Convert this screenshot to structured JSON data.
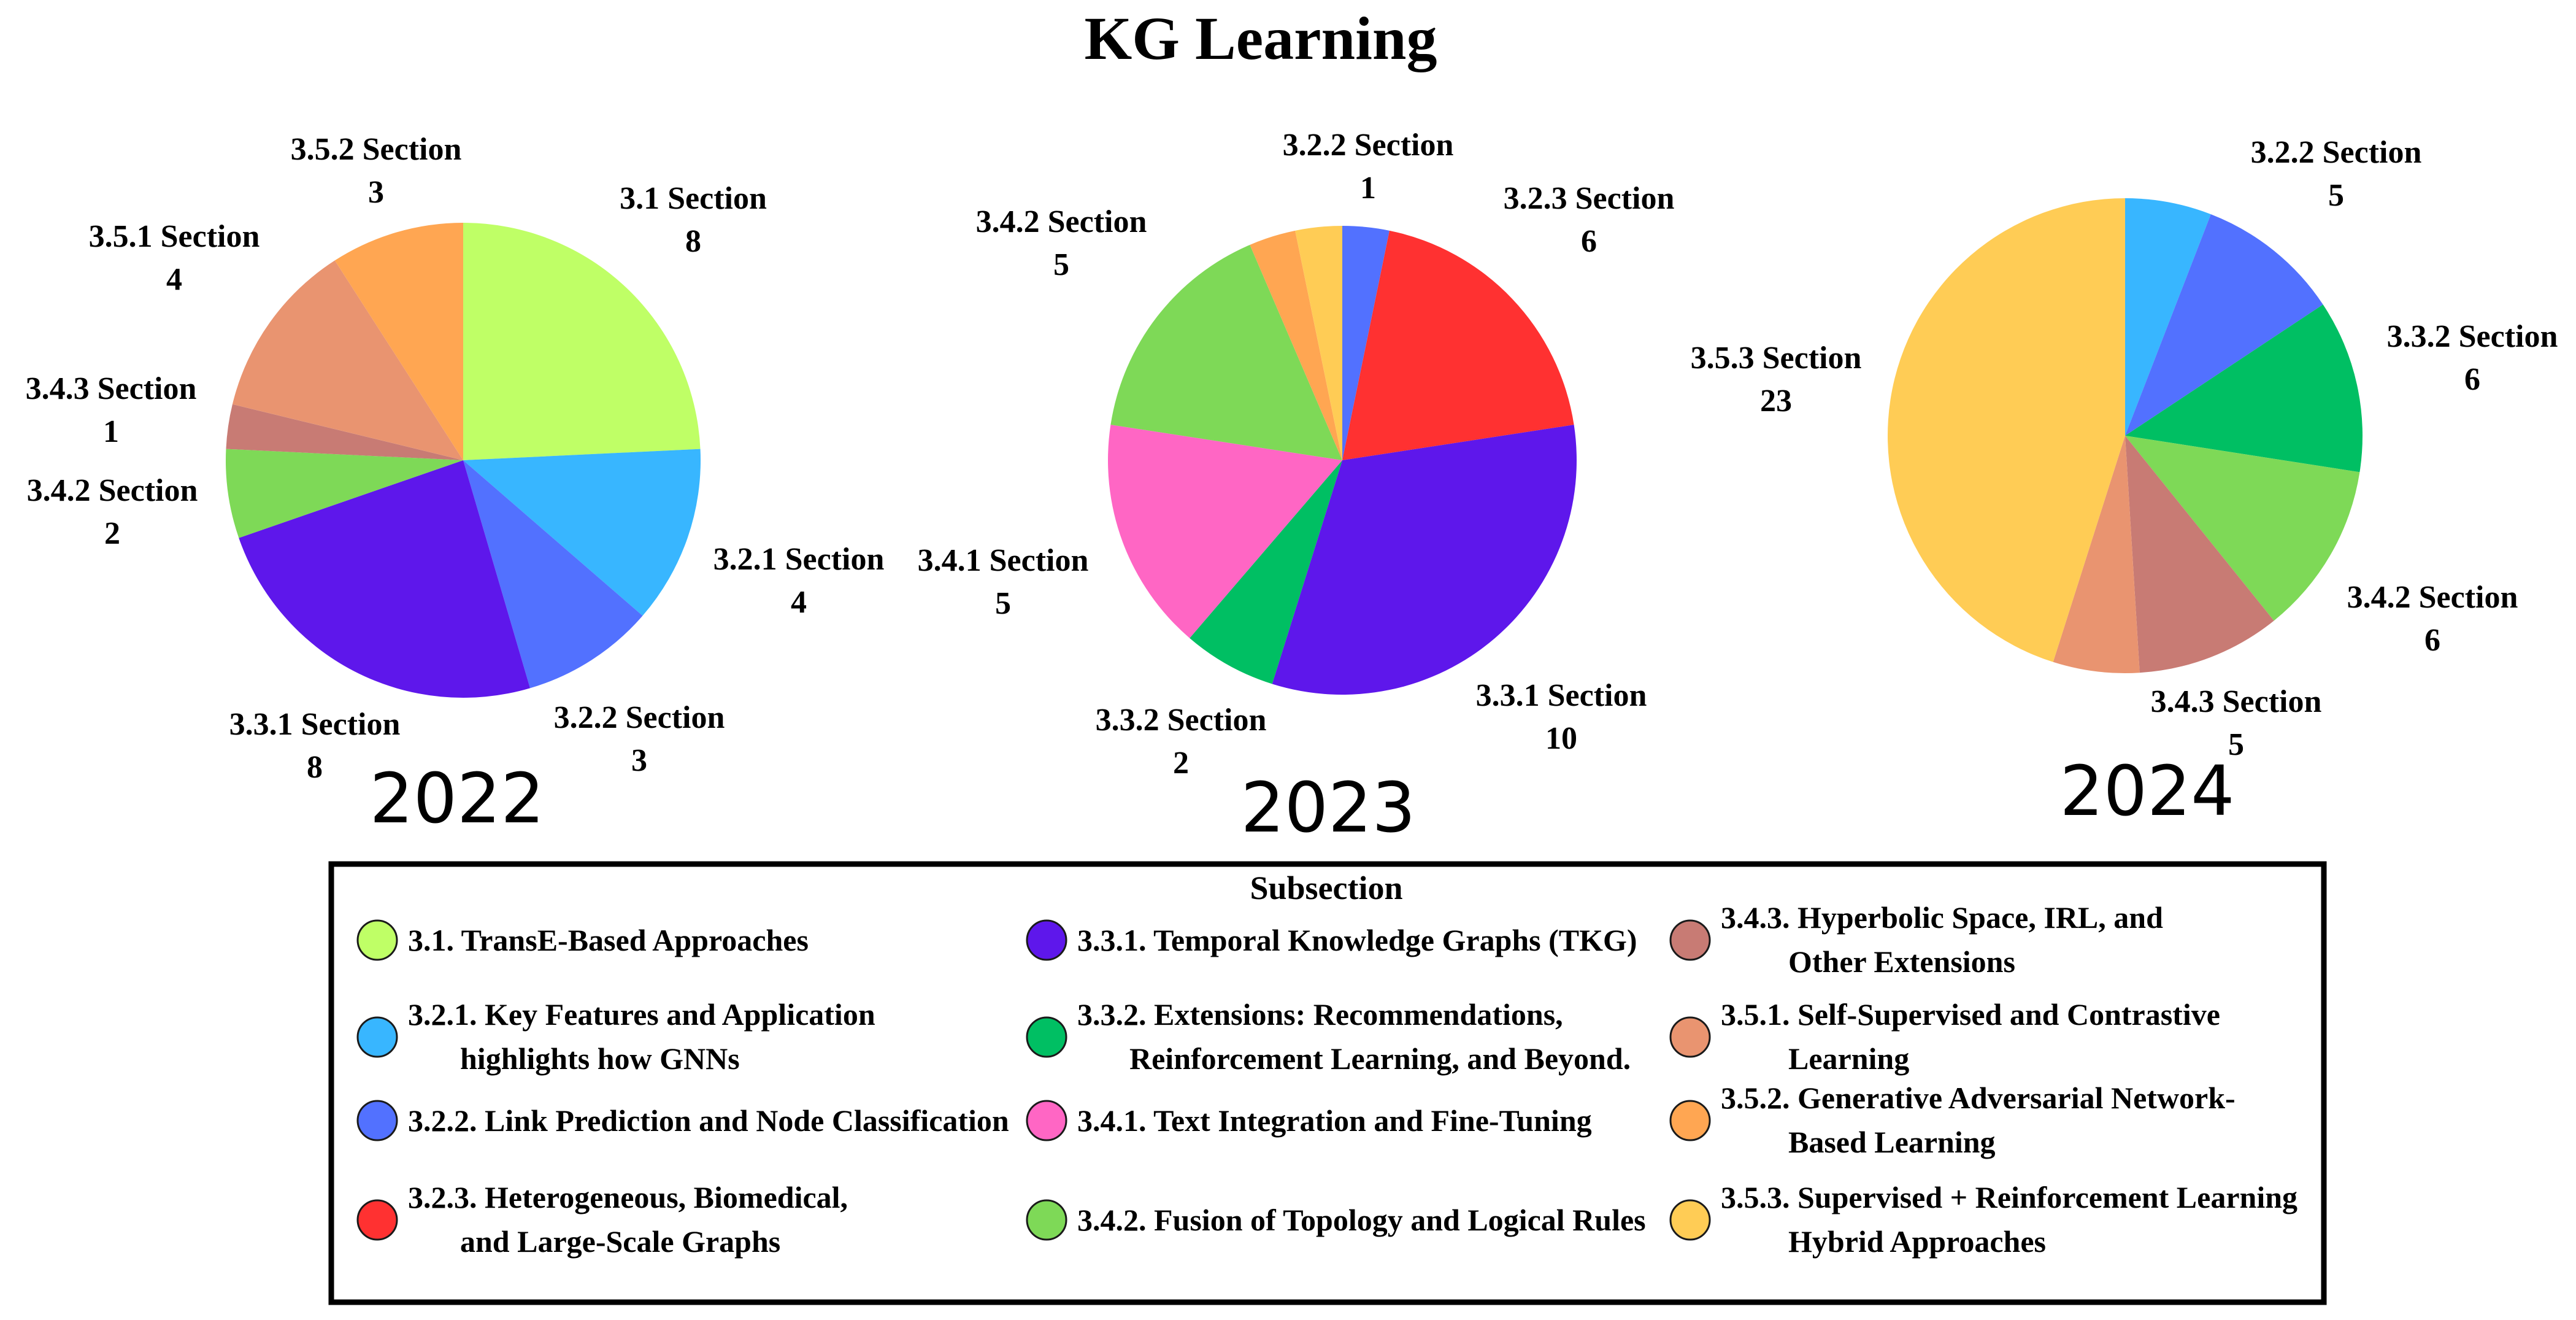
{
  "chart_data": {
    "type": "pie",
    "title": "KG Learning",
    "legend": {
      "title": "Subsection",
      "placement": "bottom",
      "entries": [
        {
          "key": "3.1",
          "lines": [
            "3.1. TransE-Based Approaches"
          ],
          "color": "#bfff66"
        },
        {
          "key": "3.2.1",
          "lines": [
            "3.2.1. Key Features and Application",
            "highlights how GNNs"
          ],
          "color": "#38b6ff"
        },
        {
          "key": "3.2.2",
          "lines": [
            "3.2.2. Link Prediction and Node Classification"
          ],
          "color": "#5271ff"
        },
        {
          "key": "3.2.3",
          "lines": [
            "3.2.3. Heterogeneous, Biomedical,",
            "and Large-Scale Graphs"
          ],
          "color": "#ff3131"
        },
        {
          "key": "3.3.1",
          "lines": [
            "3.3.1. Temporal Knowledge Graphs (TKG)"
          ],
          "color": "#5e17eb"
        },
        {
          "key": "3.3.2",
          "lines": [
            "3.3.2. Extensions: Recommendations,",
            "Reinforcement Learning, and Beyond."
          ],
          "color": "#00bf63"
        },
        {
          "key": "3.4.1",
          "lines": [
            "3.4.1. Text Integration and Fine-Tuning"
          ],
          "color": "#ff66c4"
        },
        {
          "key": "3.4.2",
          "lines": [
            "3.4.2. Fusion of Topology and Logical Rules"
          ],
          "color": "#7ed957"
        },
        {
          "key": "3.4.3",
          "lines": [
            "3.4.3. Hyperbolic Space, IRL, and",
            "Other Extensions"
          ],
          "color": "#c87b74"
        },
        {
          "key": "3.5.1",
          "lines": [
            "3.5.1. Self-Supervised and Contrastive",
            "Learning"
          ],
          "color": "#e99470"
        },
        {
          "key": "3.5.2",
          "lines": [
            "3.5.2. Generative Adversarial Network-",
            "Based Learning"
          ],
          "color": "#ffa652"
        },
        {
          "key": "3.5.3",
          "lines": [
            "3.5.3. Supervised + Reinforcement Learning",
            "Hybrid Approaches"
          ],
          "color": "#ffcc55"
        }
      ]
    },
    "pies": [
      {
        "year": "2022",
        "slices": [
          {
            "key": "3.1",
            "label": "3.1 Section",
            "value": 8
          },
          {
            "key": "3.2.1",
            "label": "3.2.1 Section",
            "value": 4
          },
          {
            "key": "3.2.2",
            "label": "3.2.2 Section",
            "value": 3
          },
          {
            "key": "3.3.1",
            "label": "3.3.1 Section",
            "value": 8
          },
          {
            "key": "3.4.2",
            "label": "3.4.2 Section",
            "value": 2
          },
          {
            "key": "3.4.3",
            "label": "3.4.3 Section",
            "value": 1
          },
          {
            "key": "3.5.1",
            "label": "3.5.1 Section",
            "value": 4
          },
          {
            "key": "3.5.2",
            "label": "3.5.2 Section",
            "value": 3
          }
        ]
      },
      {
        "year": "2023",
        "slices": [
          {
            "key": "3.2.2",
            "label": "3.2.2 Section",
            "value": 1
          },
          {
            "key": "3.2.3",
            "label": "3.2.3 Section",
            "value": 6
          },
          {
            "key": "3.3.1",
            "label": "3.3.1 Section",
            "value": 10
          },
          {
            "key": "3.3.2",
            "label": "3.3.2 Section",
            "value": 2
          },
          {
            "key": "3.4.1",
            "label": "3.4.1 Section",
            "value": 5
          },
          {
            "key": "3.4.2",
            "label": "3.4.2 Section",
            "value": 5
          },
          {
            "key": "3.5.2",
            "label": "",
            "value": 1
          },
          {
            "key": "3.5.3",
            "label": "",
            "value": 1
          }
        ]
      },
      {
        "year": "2024",
        "slices": [
          {
            "key": "3.2.1",
            "label": "",
            "value": 3
          },
          {
            "key": "3.2.2",
            "label": "3.2.2 Section",
            "value": 5
          },
          {
            "key": "3.3.2",
            "label": "3.3.2 Section",
            "value": 6
          },
          {
            "key": "3.4.2",
            "label": "3.4.2 Section",
            "value": 6
          },
          {
            "key": "3.4.3",
            "label": "3.4.3 Section",
            "value": 5
          },
          {
            "key": "3.5.1",
            "label": "",
            "value": 3
          },
          {
            "key": "3.5.3",
            "label": "3.5.3 Section",
            "value": 23
          }
        ]
      }
    ]
  }
}
